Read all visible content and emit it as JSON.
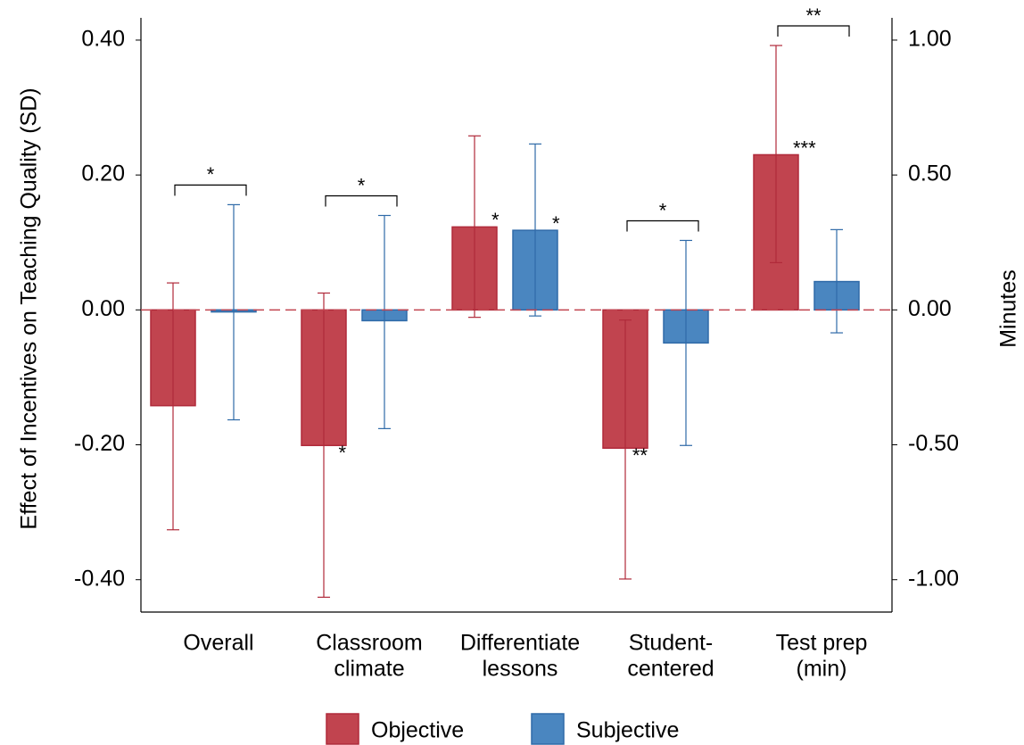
{
  "chart_data": {
    "type": "bar",
    "y_label": "Effect of Incentives on Teaching Quality (SD)",
    "y2_label": "Minutes",
    "categories": [
      [
        "Overall"
      ],
      [
        "Classroom",
        "climate"
      ],
      [
        "Differentiate",
        "lessons"
      ],
      [
        "Student-",
        "centered"
      ],
      [
        "Test prep",
        "(min)"
      ]
    ],
    "ylim": [
      -0.448,
      0.433
    ],
    "yticks": [
      {
        "value": 0.4,
        "label": "0.40"
      },
      {
        "value": 0.2,
        "label": "0.20"
      },
      {
        "value": 0,
        "label": "0.00"
      },
      {
        "value": -0.2,
        "label": "-0.20"
      },
      {
        "value": -0.4,
        "label": "-0.40"
      }
    ],
    "y2lim": [
      -1.12,
      1.0825
    ],
    "y2ticks": [
      {
        "value": 1,
        "label": "1.00"
      },
      {
        "value": 0.5,
        "label": "0.50"
      },
      {
        "value": 0,
        "label": "0.00"
      },
      {
        "value": -0.5,
        "label": "-0.50"
      },
      {
        "value": -1,
        "label": "-1.00"
      }
    ],
    "series": [
      {
        "name": "Objective",
        "color": "#c1444f",
        "edge": "#b02a3a",
        "values": [
          -0.142,
          -0.201,
          0.123,
          -0.205,
          0.23
        ],
        "ci_low": [
          -0.326,
          -0.426,
          -0.011,
          -0.399,
          0.07
        ],
        "ci_high": [
          0.04,
          0.025,
          0.258,
          -0.015,
          0.392
        ],
        "stars": [
          null,
          "*",
          "*",
          "**",
          "***"
        ]
      },
      {
        "name": "Subjective",
        "color": "#4a86c0",
        "edge": "#2f6aa8",
        "values": [
          -0.003,
          -0.016,
          0.118,
          -0.049,
          0.042
        ],
        "ci_low": [
          -0.163,
          -0.176,
          -0.009,
          -0.201,
          -0.034
        ],
        "ci_high": [
          0.156,
          0.14,
          0.246,
          0.103,
          0.119
        ],
        "stars": [
          null,
          null,
          "*",
          null,
          null
        ]
      }
    ],
    "comparison_stars": [
      "*",
      "*",
      null,
      "*",
      "**"
    ]
  }
}
